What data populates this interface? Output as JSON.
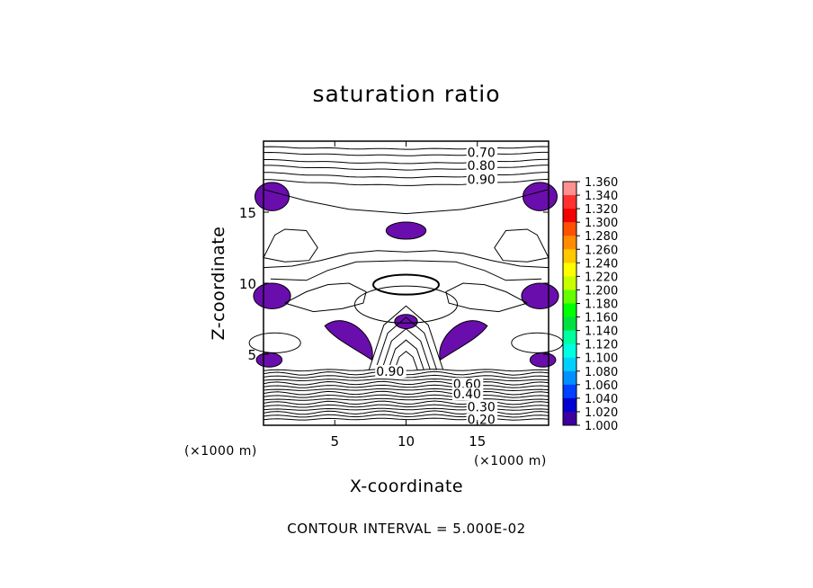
{
  "chart_data": {
    "type": "contour",
    "title": "saturation ratio",
    "xlabel": "X-coordinate",
    "ylabel": "Z-coordinate",
    "x_unit": "(×1000 m)",
    "y_unit": "(×1000 m)",
    "xlim": [
      0,
      20
    ],
    "ylim": [
      0,
      20
    ],
    "xticks": [
      5,
      10,
      15
    ],
    "yticks": [
      5,
      10,
      15
    ],
    "contour_interval_text": "CONTOUR INTERVAL = 5.000E-02",
    "contour_labels": [
      {
        "text": "0.70",
        "x": 14.3,
        "z": 19.2
      },
      {
        "text": "0.80",
        "x": 14.3,
        "z": 18.3
      },
      {
        "text": "0.90",
        "x": 14.3,
        "z": 17.3
      },
      {
        "text": "0.90",
        "x": 7.9,
        "z": 3.8
      },
      {
        "text": "0.60",
        "x": 13.3,
        "z": 2.9
      },
      {
        "text": "0.40",
        "x": 13.3,
        "z": 2.2
      },
      {
        "text": "0.30",
        "x": 14.3,
        "z": 1.3
      },
      {
        "text": "0.20",
        "x": 14.3,
        "z": 0.4
      }
    ],
    "filled_regions": {
      "color": "#6a0dad",
      "level": "≥ 1.000",
      "regions": [
        {
          "x": 0.6,
          "z": 16.1,
          "rx": 1.2,
          "rz": 1.0
        },
        {
          "x": 19.4,
          "z": 16.1,
          "rx": 1.2,
          "rz": 1.0
        },
        {
          "x": 10.0,
          "z": 13.7,
          "rx": 1.4,
          "rz": 0.6
        },
        {
          "x": 0.6,
          "z": 9.1,
          "rx": 1.3,
          "rz": 0.9
        },
        {
          "x": 19.4,
          "z": 9.1,
          "rx": 1.3,
          "rz": 0.9
        },
        {
          "x": 10.0,
          "z": 7.3,
          "rx": 0.8,
          "rz": 0.5
        },
        {
          "x": 0.4,
          "z": 4.6,
          "rx": 0.9,
          "rz": 0.5
        },
        {
          "x": 19.6,
          "z": 4.6,
          "rx": 0.9,
          "rz": 0.5
        }
      ]
    },
    "colorbar": {
      "levels": [
        "1.360",
        "1.340",
        "1.320",
        "1.300",
        "1.280",
        "1.260",
        "1.240",
        "1.220",
        "1.200",
        "1.180",
        "1.160",
        "1.140",
        "1.120",
        "1.100",
        "1.080",
        "1.060",
        "1.040",
        "1.020",
        "1.000"
      ],
      "colors": [
        "#ff9090",
        "#ff3030",
        "#f00000",
        "#ff5000",
        "#ff8c00",
        "#ffc800",
        "#ffff00",
        "#c8ff00",
        "#64ff00",
        "#00ff00",
        "#00e040",
        "#00ffa0",
        "#00ffe0",
        "#00d0ff",
        "#0090ff",
        "#0040ff",
        "#0000d0",
        "#3c00a0"
      ]
    }
  }
}
